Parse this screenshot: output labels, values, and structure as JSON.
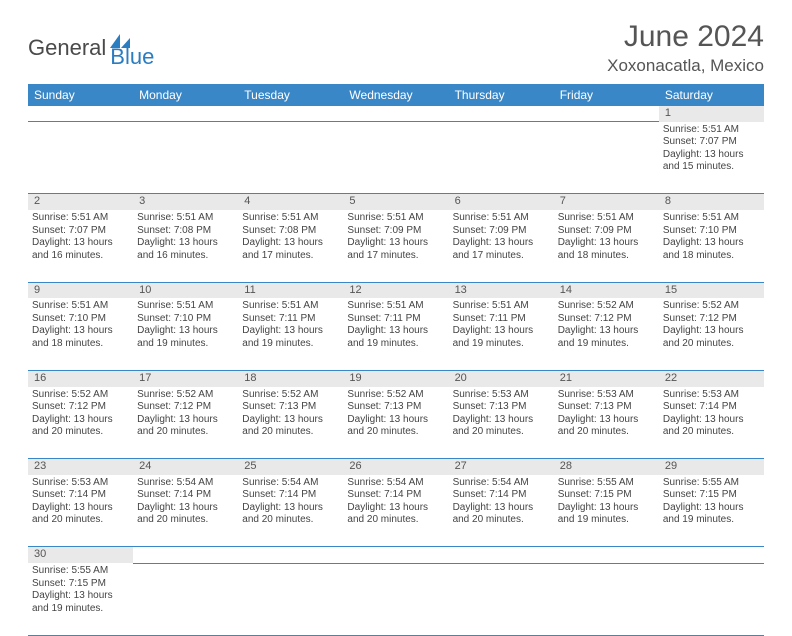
{
  "logo": {
    "part1": "General",
    "part2": "Blue"
  },
  "title": "June 2024",
  "location": "Xoxonacatla, Mexico",
  "colors": {
    "header_bg": "#3a87c7",
    "header_text": "#ffffff",
    "daynum_bg": "#e9e9e9",
    "border": "#3a87c7",
    "logo_blue": "#2b7dc1",
    "logo_gray": "#4a4a4a"
  },
  "weekdays": [
    "Sunday",
    "Monday",
    "Tuesday",
    "Wednesday",
    "Thursday",
    "Friday",
    "Saturday"
  ],
  "weeks": [
    [
      null,
      null,
      null,
      null,
      null,
      null,
      {
        "n": "1",
        "sr": "Sunrise: 5:51 AM",
        "ss": "Sunset: 7:07 PM",
        "d1": "Daylight: 13 hours",
        "d2": "and 15 minutes."
      }
    ],
    [
      {
        "n": "2",
        "sr": "Sunrise: 5:51 AM",
        "ss": "Sunset: 7:07 PM",
        "d1": "Daylight: 13 hours",
        "d2": "and 16 minutes."
      },
      {
        "n": "3",
        "sr": "Sunrise: 5:51 AM",
        "ss": "Sunset: 7:08 PM",
        "d1": "Daylight: 13 hours",
        "d2": "and 16 minutes."
      },
      {
        "n": "4",
        "sr": "Sunrise: 5:51 AM",
        "ss": "Sunset: 7:08 PM",
        "d1": "Daylight: 13 hours",
        "d2": "and 17 minutes."
      },
      {
        "n": "5",
        "sr": "Sunrise: 5:51 AM",
        "ss": "Sunset: 7:09 PM",
        "d1": "Daylight: 13 hours",
        "d2": "and 17 minutes."
      },
      {
        "n": "6",
        "sr": "Sunrise: 5:51 AM",
        "ss": "Sunset: 7:09 PM",
        "d1": "Daylight: 13 hours",
        "d2": "and 17 minutes."
      },
      {
        "n": "7",
        "sr": "Sunrise: 5:51 AM",
        "ss": "Sunset: 7:09 PM",
        "d1": "Daylight: 13 hours",
        "d2": "and 18 minutes."
      },
      {
        "n": "8",
        "sr": "Sunrise: 5:51 AM",
        "ss": "Sunset: 7:10 PM",
        "d1": "Daylight: 13 hours",
        "d2": "and 18 minutes."
      }
    ],
    [
      {
        "n": "9",
        "sr": "Sunrise: 5:51 AM",
        "ss": "Sunset: 7:10 PM",
        "d1": "Daylight: 13 hours",
        "d2": "and 18 minutes."
      },
      {
        "n": "10",
        "sr": "Sunrise: 5:51 AM",
        "ss": "Sunset: 7:10 PM",
        "d1": "Daylight: 13 hours",
        "d2": "and 19 minutes."
      },
      {
        "n": "11",
        "sr": "Sunrise: 5:51 AM",
        "ss": "Sunset: 7:11 PM",
        "d1": "Daylight: 13 hours",
        "d2": "and 19 minutes."
      },
      {
        "n": "12",
        "sr": "Sunrise: 5:51 AM",
        "ss": "Sunset: 7:11 PM",
        "d1": "Daylight: 13 hours",
        "d2": "and 19 minutes."
      },
      {
        "n": "13",
        "sr": "Sunrise: 5:51 AM",
        "ss": "Sunset: 7:11 PM",
        "d1": "Daylight: 13 hours",
        "d2": "and 19 minutes."
      },
      {
        "n": "14",
        "sr": "Sunrise: 5:52 AM",
        "ss": "Sunset: 7:12 PM",
        "d1": "Daylight: 13 hours",
        "d2": "and 19 minutes."
      },
      {
        "n": "15",
        "sr": "Sunrise: 5:52 AM",
        "ss": "Sunset: 7:12 PM",
        "d1": "Daylight: 13 hours",
        "d2": "and 20 minutes."
      }
    ],
    [
      {
        "n": "16",
        "sr": "Sunrise: 5:52 AM",
        "ss": "Sunset: 7:12 PM",
        "d1": "Daylight: 13 hours",
        "d2": "and 20 minutes."
      },
      {
        "n": "17",
        "sr": "Sunrise: 5:52 AM",
        "ss": "Sunset: 7:12 PM",
        "d1": "Daylight: 13 hours",
        "d2": "and 20 minutes."
      },
      {
        "n": "18",
        "sr": "Sunrise: 5:52 AM",
        "ss": "Sunset: 7:13 PM",
        "d1": "Daylight: 13 hours",
        "d2": "and 20 minutes."
      },
      {
        "n": "19",
        "sr": "Sunrise: 5:52 AM",
        "ss": "Sunset: 7:13 PM",
        "d1": "Daylight: 13 hours",
        "d2": "and 20 minutes."
      },
      {
        "n": "20",
        "sr": "Sunrise: 5:53 AM",
        "ss": "Sunset: 7:13 PM",
        "d1": "Daylight: 13 hours",
        "d2": "and 20 minutes."
      },
      {
        "n": "21",
        "sr": "Sunrise: 5:53 AM",
        "ss": "Sunset: 7:13 PM",
        "d1": "Daylight: 13 hours",
        "d2": "and 20 minutes."
      },
      {
        "n": "22",
        "sr": "Sunrise: 5:53 AM",
        "ss": "Sunset: 7:14 PM",
        "d1": "Daylight: 13 hours",
        "d2": "and 20 minutes."
      }
    ],
    [
      {
        "n": "23",
        "sr": "Sunrise: 5:53 AM",
        "ss": "Sunset: 7:14 PM",
        "d1": "Daylight: 13 hours",
        "d2": "and 20 minutes."
      },
      {
        "n": "24",
        "sr": "Sunrise: 5:54 AM",
        "ss": "Sunset: 7:14 PM",
        "d1": "Daylight: 13 hours",
        "d2": "and 20 minutes."
      },
      {
        "n": "25",
        "sr": "Sunrise: 5:54 AM",
        "ss": "Sunset: 7:14 PM",
        "d1": "Daylight: 13 hours",
        "d2": "and 20 minutes."
      },
      {
        "n": "26",
        "sr": "Sunrise: 5:54 AM",
        "ss": "Sunset: 7:14 PM",
        "d1": "Daylight: 13 hours",
        "d2": "and 20 minutes."
      },
      {
        "n": "27",
        "sr": "Sunrise: 5:54 AM",
        "ss": "Sunset: 7:14 PM",
        "d1": "Daylight: 13 hours",
        "d2": "and 20 minutes."
      },
      {
        "n": "28",
        "sr": "Sunrise: 5:55 AM",
        "ss": "Sunset: 7:15 PM",
        "d1": "Daylight: 13 hours",
        "d2": "and 19 minutes."
      },
      {
        "n": "29",
        "sr": "Sunrise: 5:55 AM",
        "ss": "Sunset: 7:15 PM",
        "d1": "Daylight: 13 hours",
        "d2": "and 19 minutes."
      }
    ],
    [
      {
        "n": "30",
        "sr": "Sunrise: 5:55 AM",
        "ss": "Sunset: 7:15 PM",
        "d1": "Daylight: 13 hours",
        "d2": "and 19 minutes."
      },
      null,
      null,
      null,
      null,
      null,
      null
    ]
  ]
}
